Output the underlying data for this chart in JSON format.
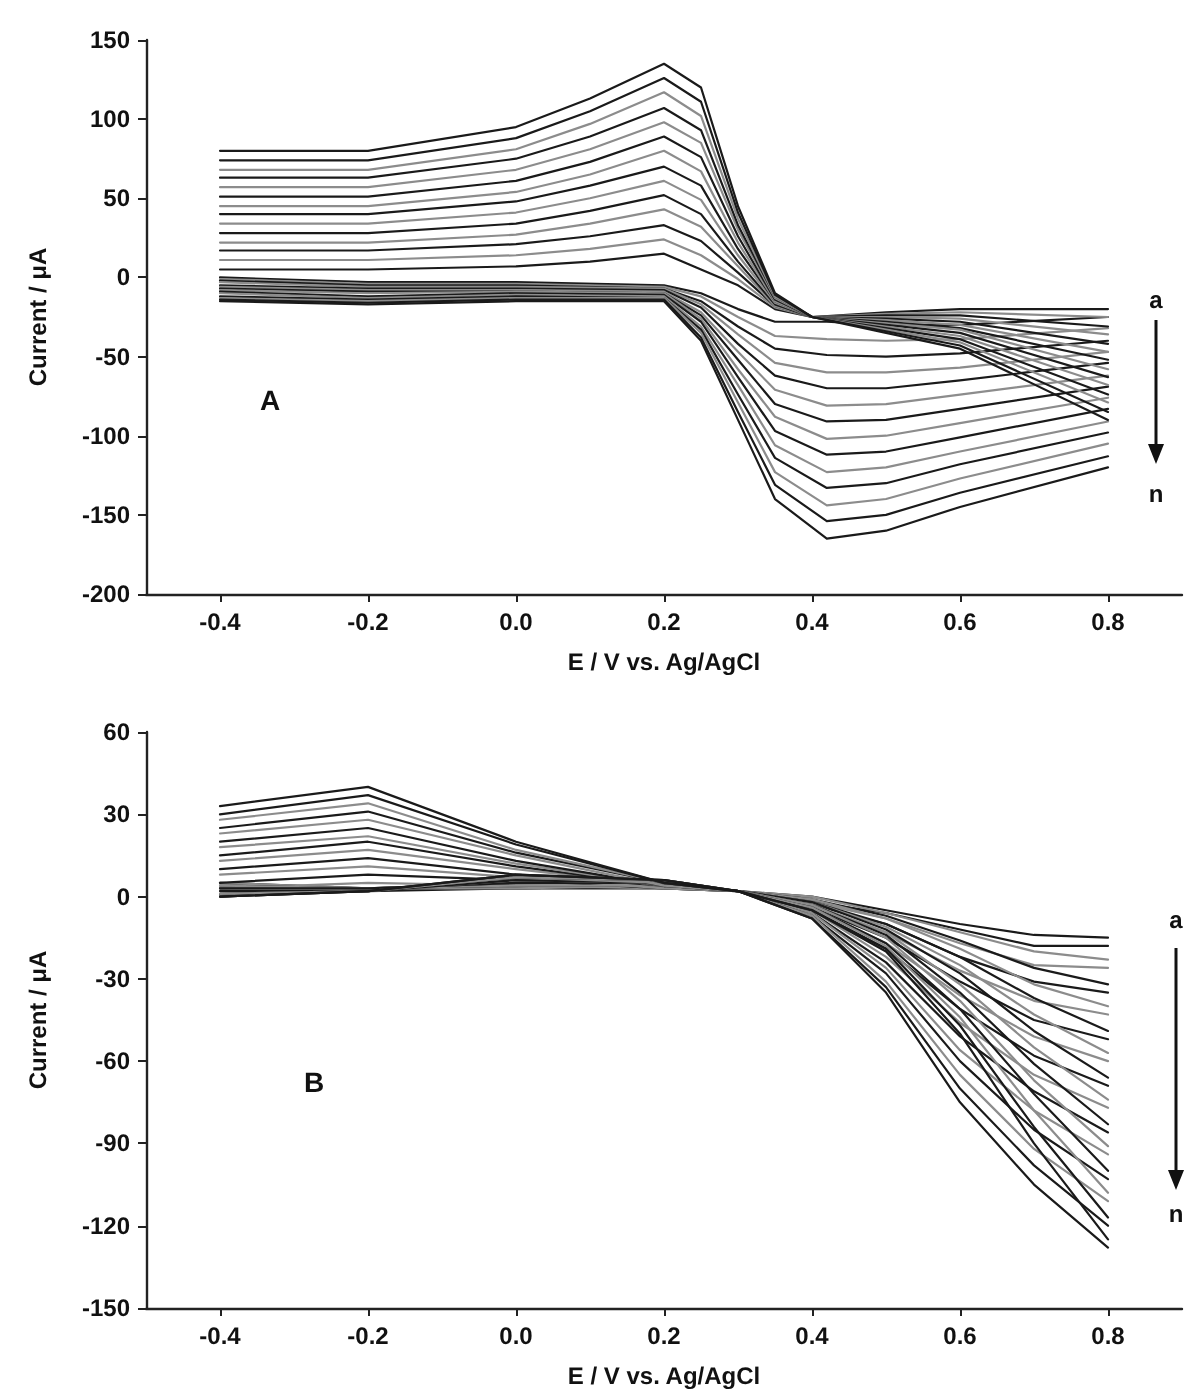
{
  "chart_data": [
    {
      "type": "line",
      "xlabel": "E / V vs. Ag/AgCl",
      "ylabel": "Current / μA",
      "annotations": [
        "A",
        "a",
        "n"
      ],
      "xlim": [
        -0.5,
        0.9
      ],
      "xticks": [
        -0.4,
        -0.2,
        {
          "value": 0,
          "label": "0.0"
        },
        0.2,
        0.4,
        0.6,
        0.8
      ],
      "ylim": [
        -200,
        150
      ],
      "yticks": [
        -200,
        -150,
        -100,
        -50,
        0,
        50,
        100,
        150
      ],
      "series": [
        {
          "color": "#1a1a1a",
          "x": [
            -0.4,
            -0.2,
            0,
            0.1,
            0.2,
            0.25,
            0.3,
            0.35,
            0.4,
            0.5,
            0.6,
            0.8
          ],
          "values": [
            5,
            5,
            7,
            10,
            15,
            5,
            -5,
            -20,
            -25,
            -22,
            -20,
            -20
          ]
        },
        {
          "color": "#1a1a1a",
          "x": [
            -0.4,
            -0.2,
            0,
            0.2,
            0.25,
            0.3,
            0.35,
            0.42,
            0.5,
            0.6,
            0.8
          ],
          "values": [
            0,
            -3,
            -3,
            -5,
            -10,
            -20,
            -28,
            -28,
            -30,
            -30,
            -25
          ]
        },
        {
          "color": "#8c8c8c",
          "x": [
            -0.4,
            -0.2,
            0,
            0.1,
            0.2,
            0.25,
            0.3,
            0.35,
            0.4,
            0.5,
            0.6,
            0.8
          ],
          "values": [
            11,
            11,
            14,
            18,
            24,
            14,
            -1,
            -19,
            -25,
            -23,
            -22,
            -25
          ]
        },
        {
          "color": "#8c8c8c",
          "x": [
            -0.4,
            -0.2,
            0,
            0.2,
            0.25,
            0.3,
            0.35,
            0.42,
            0.5,
            0.6,
            0.8
          ],
          "values": [
            -1,
            -4,
            -4,
            -6,
            -12,
            -25,
            -37,
            -39,
            -40,
            -39,
            -32
          ]
        },
        {
          "color": "#1a1a1a",
          "x": [
            -0.4,
            -0.2,
            0,
            0.1,
            0.2,
            0.25,
            0.3,
            0.35,
            0.4,
            0.5,
            0.6,
            0.8
          ],
          "values": [
            17,
            17,
            21,
            26,
            33,
            23,
            3,
            -18,
            -25,
            -24,
            -24,
            -31
          ]
        },
        {
          "color": "#1a1a1a",
          "x": [
            -0.4,
            -0.2,
            0,
            0.2,
            0.25,
            0.3,
            0.35,
            0.42,
            0.5,
            0.6,
            0.8
          ],
          "values": [
            -2,
            -5,
            -5,
            -7,
            -15,
            -31,
            -45,
            -49,
            -50,
            -48,
            -40
          ]
        },
        {
          "color": "#8c8c8c",
          "x": [
            -0.4,
            -0.2,
            0,
            0.1,
            0.2,
            0.25,
            0.3,
            0.35,
            0.4,
            0.5,
            0.6,
            0.8
          ],
          "values": [
            22,
            22,
            27,
            34,
            43,
            32,
            7,
            -18,
            -25,
            -25,
            -26,
            -36
          ]
        },
        {
          "color": "#8c8c8c",
          "x": [
            -0.4,
            -0.2,
            0,
            0.2,
            0.25,
            0.3,
            0.35,
            0.42,
            0.5,
            0.6,
            0.8
          ],
          "values": [
            -3,
            -6,
            -6,
            -7,
            -17,
            -36,
            -54,
            -60,
            -60,
            -57,
            -47
          ]
        },
        {
          "color": "#1a1a1a",
          "x": [
            -0.4,
            -0.2,
            0,
            0.1,
            0.2,
            0.25,
            0.3,
            0.35,
            0.4,
            0.5,
            0.6,
            0.8
          ],
          "values": [
            28,
            28,
            34,
            42,
            52,
            40,
            10,
            -17,
            -25,
            -26,
            -28,
            -42
          ]
        },
        {
          "color": "#1a1a1a",
          "x": [
            -0.4,
            -0.2,
            0,
            0.2,
            0.25,
            0.3,
            0.35,
            0.42,
            0.5,
            0.6,
            0.8
          ],
          "values": [
            -5,
            -7,
            -7,
            -8,
            -19,
            -42,
            -62,
            -70,
            -70,
            -65,
            -54
          ]
        },
        {
          "color": "#8c8c8c",
          "x": [
            -0.4,
            -0.2,
            0,
            0.1,
            0.2,
            0.25,
            0.3,
            0.35,
            0.4,
            0.5,
            0.6,
            0.8
          ],
          "values": [
            34,
            34,
            41,
            50,
            61,
            49,
            14,
            -16,
            -25,
            -27,
            -30,
            -47
          ]
        },
        {
          "color": "#8c8c8c",
          "x": [
            -0.4,
            -0.2,
            0,
            0.2,
            0.25,
            0.3,
            0.35,
            0.42,
            0.5,
            0.6,
            0.8
          ],
          "values": [
            -6,
            -8,
            -8,
            -9,
            -22,
            -47,
            -71,
            -81,
            -80,
            -74,
            -62
          ]
        },
        {
          "color": "#1a1a1a",
          "x": [
            -0.4,
            -0.2,
            0,
            0.1,
            0.2,
            0.25,
            0.3,
            0.35,
            0.4,
            0.5,
            0.6,
            0.8
          ],
          "values": [
            40,
            40,
            48,
            58,
            70,
            58,
            18,
            -15,
            -25,
            -28,
            -32,
            -52
          ]
        },
        {
          "color": "#1a1a1a",
          "x": [
            -0.4,
            -0.2,
            0,
            0.2,
            0.25,
            0.3,
            0.35,
            0.42,
            0.5,
            0.6,
            0.8
          ],
          "values": [
            -7,
            -9,
            -9,
            -10,
            -24,
            -52,
            -80,
            -91,
            -90,
            -83,
            -69
          ]
        },
        {
          "color": "#8c8c8c",
          "x": [
            -0.4,
            -0.2,
            0,
            0.1,
            0.2,
            0.25,
            0.3,
            0.35,
            0.4,
            0.5,
            0.6,
            0.8
          ],
          "values": [
            45,
            45,
            54,
            65,
            80,
            67,
            22,
            -15,
            -25,
            -29,
            -33,
            -58
          ]
        },
        {
          "color": "#8c8c8c",
          "x": [
            -0.4,
            -0.2,
            0,
            0.2,
            0.25,
            0.3,
            0.35,
            0.42,
            0.5,
            0.6,
            0.8
          ],
          "values": [
            -8,
            -10,
            -9,
            -10,
            -26,
            -58,
            -88,
            -102,
            -100,
            -92,
            -76
          ]
        },
        {
          "color": "#1a1a1a",
          "x": [
            -0.4,
            -0.2,
            0,
            0.1,
            0.2,
            0.25,
            0.3,
            0.35,
            0.4,
            0.5,
            0.6,
            0.8
          ],
          "values": [
            51,
            51,
            61,
            73,
            89,
            76,
            26,
            -14,
            -25,
            -30,
            -35,
            -63
          ]
        },
        {
          "color": "#1a1a1a",
          "x": [
            -0.4,
            -0.2,
            0,
            0.2,
            0.25,
            0.3,
            0.35,
            0.42,
            0.5,
            0.6,
            0.8
          ],
          "values": [
            -9,
            -12,
            -10,
            -11,
            -28,
            -63,
            -97,
            -112,
            -110,
            -101,
            -83
          ]
        },
        {
          "color": "#8c8c8c",
          "x": [
            -0.4,
            -0.2,
            0,
            0.1,
            0.2,
            0.25,
            0.3,
            0.35,
            0.4,
            0.5,
            0.6,
            0.8
          ],
          "values": [
            57,
            57,
            68,
            81,
            98,
            85,
            30,
            -13,
            -25,
            -31,
            -37,
            -68
          ]
        },
        {
          "color": "#8c8c8c",
          "x": [
            -0.4,
            -0.2,
            0,
            0.2,
            0.25,
            0.3,
            0.35,
            0.42,
            0.5,
            0.6,
            0.8
          ],
          "values": [
            -10,
            -13,
            -11,
            -12,
            -31,
            -68,
            -106,
            -123,
            -120,
            -110,
            -91
          ]
        },
        {
          "color": "#1a1a1a",
          "x": [
            -0.4,
            -0.2,
            0,
            0.1,
            0.2,
            0.25,
            0.3,
            0.35,
            0.4,
            0.5,
            0.6,
            0.8
          ],
          "values": [
            63,
            63,
            75,
            89,
            107,
            93,
            33,
            -12,
            -25,
            -32,
            -39,
            -74
          ]
        },
        {
          "color": "#1a1a1a",
          "x": [
            -0.4,
            -0.2,
            0,
            0.2,
            0.25,
            0.3,
            0.35,
            0.42,
            0.5,
            0.6,
            0.8
          ],
          "values": [
            -12,
            -14,
            -12,
            -13,
            -33,
            -74,
            -114,
            -133,
            -130,
            -118,
            -98
          ]
        },
        {
          "color": "#8c8c8c",
          "x": [
            -0.4,
            -0.2,
            0,
            0.1,
            0.2,
            0.25,
            0.3,
            0.35,
            0.4,
            0.5,
            0.6,
            0.8
          ],
          "values": [
            68,
            68,
            81,
            97,
            117,
            102,
            37,
            -12,
            -25,
            -33,
            -41,
            -79
          ]
        },
        {
          "color": "#8c8c8c",
          "x": [
            -0.4,
            -0.2,
            0,
            0.2,
            0.25,
            0.3,
            0.35,
            0.42,
            0.5,
            0.6,
            0.8
          ],
          "values": [
            -13,
            -15,
            -13,
            -13,
            -35,
            -79,
            -123,
            -144,
            -140,
            -127,
            -105
          ]
        },
        {
          "color": "#1a1a1a",
          "x": [
            -0.4,
            -0.2,
            0,
            0.1,
            0.2,
            0.25,
            0.3,
            0.35,
            0.4,
            0.5,
            0.6,
            0.8
          ],
          "values": [
            74,
            74,
            88,
            105,
            126,
            111,
            41,
            -11,
            -25,
            -34,
            -43,
            -85
          ]
        },
        {
          "color": "#1a1a1a",
          "x": [
            -0.4,
            -0.2,
            0,
            0.2,
            0.25,
            0.3,
            0.35,
            0.42,
            0.5,
            0.6,
            0.8
          ],
          "values": [
            -14,
            -16,
            -14,
            -14,
            -38,
            -85,
            -131,
            -154,
            -150,
            -136,
            -113
          ]
        },
        {
          "color": "#1a1a1a",
          "x": [
            -0.4,
            -0.2,
            0,
            0.1,
            0.2,
            0.25,
            0.3,
            0.35,
            0.4,
            0.5,
            0.6,
            0.8
          ],
          "values": [
            80,
            80,
            95,
            113,
            135,
            120,
            45,
            -10,
            -25,
            -35,
            -45,
            -90
          ]
        },
        {
          "color": "#1a1a1a",
          "x": [
            -0.4,
            -0.2,
            0,
            0.2,
            0.25,
            0.3,
            0.35,
            0.42,
            0.5,
            0.6,
            0.8
          ],
          "values": [
            -15,
            -17,
            -15,
            -15,
            -40,
            -90,
            -140,
            -165,
            -160,
            -145,
            -120
          ]
        }
      ]
    },
    {
      "type": "line",
      "xlabel": "E / V vs. Ag/AgCl",
      "ylabel": "Current / μA",
      "annotations": [
        "B",
        "a",
        "n"
      ],
      "xlim": [
        -0.5,
        0.9
      ],
      "xticks": [
        -0.4,
        -0.2,
        {
          "value": 0,
          "label": "0.0"
        },
        0.2,
        0.4,
        0.6,
        0.8
      ],
      "ylim": [
        -150,
        60
      ],
      "yticks": [
        -150,
        -120,
        -90,
        -60,
        -30,
        0,
        30,
        60
      ],
      "series": [
        {
          "color": "#1a1a1a",
          "x": [
            -0.4,
            -0.2,
            0,
            0.2,
            0.3,
            0.4,
            0.5,
            0.6,
            0.7,
            0.8
          ],
          "values": [
            0,
            2,
            3,
            3,
            2,
            0,
            -5,
            -10,
            -14,
            -15
          ]
        },
        {
          "color": "#1a1a1a",
          "x": [
            -0.4,
            -0.2,
            0,
            0.2,
            0.3,
            0.4,
            0.5,
            0.6,
            0.7,
            0.8
          ],
          "values": [
            5,
            3,
            3,
            4,
            2,
            -2,
            -6,
            -12,
            -18,
            -18
          ]
        },
        {
          "color": "#8c8c8c",
          "x": [
            -0.4,
            -0.2,
            0,
            0.2,
            0.3,
            0.4,
            0.5,
            0.6,
            0.7,
            0.8
          ],
          "values": [
            3,
            5,
            4,
            3,
            2,
            0,
            -6,
            -13,
            -20,
            -23
          ]
        },
        {
          "color": "#8c8c8c",
          "x": [
            -0.4,
            -0.2,
            0,
            0.2,
            0.3,
            0.4,
            0.5,
            0.6,
            0.7,
            0.8
          ],
          "values": [
            5,
            3,
            3,
            4,
            2,
            -2,
            -8,
            -17,
            -25,
            -26
          ]
        },
        {
          "color": "#1a1a1a",
          "x": [
            -0.4,
            -0.2,
            0,
            0.2,
            0.3,
            0.4,
            0.5,
            0.6,
            0.7,
            0.8
          ],
          "values": [
            5,
            8,
            6,
            3,
            2,
            -1,
            -7,
            -16,
            -26,
            -32
          ]
        },
        {
          "color": "#1a1a1a",
          "x": [
            -0.4,
            -0.2,
            0,
            0.2,
            0.3,
            0.4,
            0.5,
            0.6,
            0.7,
            0.8
          ],
          "values": [
            4,
            3,
            4,
            4,
            2,
            -3,
            -10,
            -22,
            -31,
            -35
          ]
        },
        {
          "color": "#8c8c8c",
          "x": [
            -0.4,
            -0.2,
            0,
            0.2,
            0.3,
            0.4,
            0.5,
            0.6,
            0.7,
            0.8
          ],
          "values": [
            8,
            11,
            7,
            3,
            2,
            -1,
            -8,
            -19,
            -32,
            -40
          ]
        },
        {
          "color": "#8c8c8c",
          "x": [
            -0.4,
            -0.2,
            0,
            0.2,
            0.3,
            0.4,
            0.5,
            0.6,
            0.7,
            0.8
          ],
          "values": [
            4,
            3,
            4,
            4,
            2,
            -3,
            -13,
            -27,
            -38,
            -43
          ]
        },
        {
          "color": "#1a1a1a",
          "x": [
            -0.4,
            -0.2,
            0,
            0.2,
            0.3,
            0.4,
            0.5,
            0.6,
            0.7,
            0.8
          ],
          "values": [
            10,
            14,
            8,
            4,
            2,
            -2,
            -10,
            -22,
            -37,
            -49
          ]
        },
        {
          "color": "#1a1a1a",
          "x": [
            -0.4,
            -0.2,
            0,
            0.2,
            0.3,
            0.4,
            0.5,
            0.6,
            0.7,
            0.8
          ],
          "values": [
            3,
            3,
            5,
            5,
            2,
            -4,
            -15,
            -31,
            -45,
            -52
          ]
        },
        {
          "color": "#8c8c8c",
          "x": [
            -0.4,
            -0.2,
            0,
            0.2,
            0.3,
            0.4,
            0.5,
            0.6,
            0.7,
            0.8
          ],
          "values": [
            13,
            17,
            10,
            4,
            2,
            -2,
            -11,
            -25,
            -43,
            -57
          ]
        },
        {
          "color": "#8c8c8c",
          "x": [
            -0.4,
            -0.2,
            0,
            0.2,
            0.3,
            0.4,
            0.5,
            0.6,
            0.7,
            0.8
          ],
          "values": [
            3,
            3,
            5,
            5,
            2,
            -4,
            -17,
            -36,
            -51,
            -60
          ]
        },
        {
          "color": "#1a1a1a",
          "x": [
            -0.4,
            -0.2,
            0,
            0.2,
            0.3,
            0.4,
            0.5,
            0.6,
            0.7,
            0.8
          ],
          "values": [
            15,
            20,
            11,
            4,
            2,
            -2,
            -12,
            -28,
            -49,
            -66
          ]
        },
        {
          "color": "#1a1a1a",
          "x": [
            -0.4,
            -0.2,
            0,
            0.2,
            0.3,
            0.4,
            0.5,
            0.6,
            0.7,
            0.8
          ],
          "values": [
            3,
            3,
            5,
            5,
            2,
            -5,
            -19,
            -41,
            -58,
            -69
          ]
        },
        {
          "color": "#8c8c8c",
          "x": [
            -0.4,
            -0.2,
            0,
            0.2,
            0.3,
            0.4,
            0.5,
            0.6,
            0.7,
            0.8
          ],
          "values": [
            18,
            22,
            12,
            4,
            2,
            -3,
            -13,
            -32,
            -55,
            -74
          ]
        },
        {
          "color": "#8c8c8c",
          "x": [
            -0.4,
            -0.2,
            0,
            0.2,
            0.3,
            0.4,
            0.5,
            0.6,
            0.7,
            0.8
          ],
          "values": [
            2,
            2,
            6,
            5,
            2,
            -5,
            -22,
            -46,
            -65,
            -77
          ]
        },
        {
          "color": "#1a1a1a",
          "x": [
            -0.4,
            -0.2,
            0,
            0.2,
            0.3,
            0.4,
            0.5,
            0.6,
            0.7,
            0.8
          ],
          "values": [
            20,
            25,
            13,
            4,
            2,
            -3,
            -14,
            -35,
            -61,
            -83
          ]
        },
        {
          "color": "#1a1a1a",
          "x": [
            -0.4,
            -0.2,
            0,
            0.2,
            0.3,
            0.4,
            0.5,
            0.6,
            0.7,
            0.8
          ],
          "values": [
            2,
            2,
            6,
            5,
            2,
            -6,
            -24,
            -51,
            -71,
            -86
          ]
        },
        {
          "color": "#8c8c8c",
          "x": [
            -0.4,
            -0.2,
            0,
            0.2,
            0.3,
            0.4,
            0.5,
            0.6,
            0.7,
            0.8
          ],
          "values": [
            23,
            28,
            15,
            4,
            2,
            -3,
            -15,
            -38,
            -67,
            -91
          ]
        },
        {
          "color": "#8c8c8c",
          "x": [
            -0.4,
            -0.2,
            0,
            0.2,
            0.3,
            0.4,
            0.5,
            0.6,
            0.7,
            0.8
          ],
          "values": [
            1,
            2,
            7,
            5,
            2,
            -6,
            -26,
            -56,
            -78,
            -94
          ]
        },
        {
          "color": "#1a1a1a",
          "x": [
            -0.4,
            -0.2,
            0,
            0.2,
            0.3,
            0.4,
            0.5,
            0.6,
            0.7,
            0.8
          ],
          "values": [
            25,
            31,
            16,
            5,
            2,
            -4,
            -17,
            -41,
            -72,
            -100
          ]
        },
        {
          "color": "#1a1a1a",
          "x": [
            -0.4,
            -0.2,
            0,
            0.2,
            0.3,
            0.4,
            0.5,
            0.6,
            0.7,
            0.8
          ],
          "values": [
            1,
            2,
            7,
            6,
            2,
            -7,
            -28,
            -60,
            -85,
            -103
          ]
        },
        {
          "color": "#8c8c8c",
          "x": [
            -0.4,
            -0.2,
            0,
            0.2,
            0.3,
            0.4,
            0.5,
            0.6,
            0.7,
            0.8
          ],
          "values": [
            28,
            34,
            17,
            5,
            2,
            -4,
            -18,
            -44,
            -78,
            -108
          ]
        },
        {
          "color": "#8c8c8c",
          "x": [
            -0.4,
            -0.2,
            0,
            0.2,
            0.3,
            0.4,
            0.5,
            0.6,
            0.7,
            0.8
          ],
          "values": [
            1,
            2,
            7,
            6,
            2,
            -7,
            -31,
            -65,
            -92,
            -111
          ]
        },
        {
          "color": "#1a1a1a",
          "x": [
            -0.4,
            -0.2,
            0,
            0.2,
            0.3,
            0.4,
            0.5,
            0.6,
            0.7,
            0.8
          ],
          "values": [
            30,
            37,
            19,
            5,
            2,
            -5,
            -19,
            -47,
            -84,
            -117
          ]
        },
        {
          "color": "#1a1a1a",
          "x": [
            -0.4,
            -0.2,
            0,
            0.2,
            0.3,
            0.4,
            0.5,
            0.6,
            0.7,
            0.8
          ],
          "values": [
            0,
            2,
            8,
            6,
            2,
            -8,
            -33,
            -70,
            -98,
            -120
          ]
        },
        {
          "color": "#1a1a1a",
          "x": [
            -0.4,
            -0.2,
            0,
            0.2,
            0.3,
            0.4,
            0.5,
            0.6,
            0.7,
            0.8
          ],
          "values": [
            33,
            40,
            20,
            5,
            2,
            -5,
            -20,
            -50,
            -90,
            -125
          ]
        },
        {
          "color": "#1a1a1a",
          "x": [
            -0.4,
            -0.2,
            0,
            0.2,
            0.3,
            0.4,
            0.5,
            0.6,
            0.7,
            0.8
          ],
          "values": [
            0,
            2,
            8,
            6,
            2,
            -8,
            -35,
            -75,
            -105,
            -128
          ]
        }
      ]
    }
  ]
}
